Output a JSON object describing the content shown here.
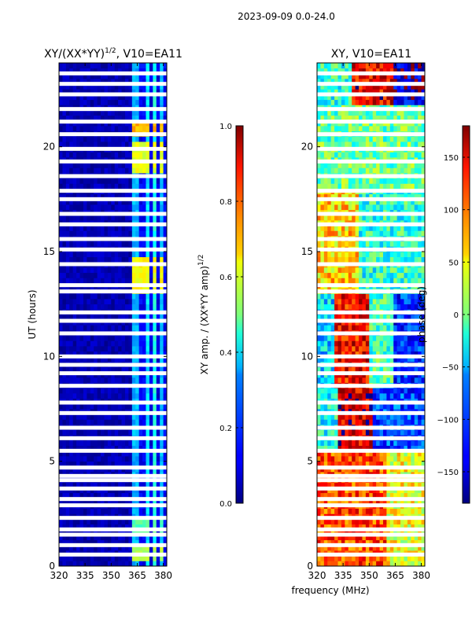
{
  "chart_data": {
    "type": "heatmap",
    "suptitle": "2023-09-09 0.0-24.0",
    "shared_xlabel": "frequency (MHz)",
    "panels": [
      {
        "id": "amp",
        "title": "XY/(XX*YY)",
        "title_sup": "1/2",
        "title_suffix": ", V10=EA11",
        "xlim": [
          320,
          382
        ],
        "ylim": [
          0,
          24
        ],
        "xticks": [
          320,
          335,
          350,
          365,
          380
        ],
        "yticks": [
          0,
          5,
          10,
          15,
          20
        ],
        "ylabel": "UT (hours)",
        "colormap": "jet",
        "colorbar": {
          "label": "XY amp. / (XX*YY amp)",
          "label_sup": "1/2",
          "range": [
            0.0,
            1.0
          ],
          "ticks": [
            "0.0",
            "0.2",
            "0.4",
            "0.6",
            "0.8",
            "1.0"
          ],
          "tick_values": [
            0.0,
            0.2,
            0.4,
            0.6,
            0.8,
            1.0
          ]
        }
      },
      {
        "id": "phase",
        "title": "XY, V10=EA11",
        "xlim": [
          320,
          382
        ],
        "ylim": [
          0,
          24
        ],
        "xticks": [
          320,
          335,
          350,
          365,
          380
        ],
        "yticks": [
          0,
          5,
          10,
          15,
          20
        ],
        "colormap": "jet",
        "colorbar": {
          "label": "phase (deg)",
          "range": [
            -180,
            180
          ],
          "ticks": [
            "−150",
            "−100",
            "−50",
            "0",
            "50",
            "100",
            "150"
          ],
          "tick_values": [
            -150,
            -100,
            -50,
            0,
            50,
            100,
            150
          ]
        }
      }
    ],
    "flagged_ut_hours": [
      0.55,
      1.0,
      1.5,
      1.75,
      2.3,
      2.9,
      3.2,
      3.7,
      4.1,
      4.3,
      4.7,
      5.5,
      6.1,
      6.6,
      7.3,
      7.8,
      8.6,
      9.2,
      9.6,
      10.0,
      11.1,
      11.7,
      12.1,
      13.1,
      13.4,
      14.4,
      15.1,
      15.6,
      16.3,
      16.8,
      17.5,
      17.9,
      18.6,
      19.3,
      19.9,
      20.6,
      21.2,
      21.8,
      22.5,
      23.0,
      23.5
    ],
    "amp_features": [
      {
        "f_start": 320,
        "f_end": 362,
        "value": 0.05
      },
      {
        "f_start": 362,
        "f_end": 366,
        "value": 0.3
      },
      {
        "f_start": 366,
        "f_end": 370,
        "value": 0.12
      },
      {
        "f_start": 370,
        "f_end": 372,
        "value": 0.35
      },
      {
        "f_start": 372,
        "f_end": 375,
        "value": 0.1
      },
      {
        "f_start": 375,
        "f_end": 377,
        "value": 0.4
      },
      {
        "f_start": 377,
        "f_end": 379,
        "value": 0.1
      },
      {
        "f_start": 379,
        "f_end": 381,
        "value": 0.3
      },
      {
        "f_start": 381,
        "f_end": 382,
        "value": 0.12
      }
    ],
    "amp_hotspots": [
      {
        "ut_start": 20.5,
        "ut_end": 21.3,
        "f_start": 362,
        "f_end": 381,
        "value": 0.7
      },
      {
        "ut_start": 18.8,
        "ut_end": 20.2,
        "f_start": 362,
        "f_end": 381,
        "value": 0.6
      },
      {
        "ut_start": 13.0,
        "ut_end": 14.8,
        "f_start": 362,
        "f_end": 381,
        "value": 0.62
      },
      {
        "ut_start": 0.3,
        "ut_end": 0.9,
        "f_start": 362,
        "f_end": 381,
        "value": 0.55
      },
      {
        "ut_start": 1.6,
        "ut_end": 2.2,
        "f_start": 362,
        "f_end": 381,
        "value": 0.45
      }
    ],
    "phase_features": [
      {
        "ut_start": 0,
        "ut_end": 5.5,
        "f_start": 320,
        "f_end": 360,
        "value": 110
      },
      {
        "ut_start": 0,
        "ut_end": 5.5,
        "f_start": 360,
        "f_end": 382,
        "value": 40
      },
      {
        "ut_start": 5.5,
        "ut_end": 8.5,
        "f_start": 320,
        "f_end": 332,
        "value": -40
      },
      {
        "ut_start": 5.5,
        "ut_end": 8.5,
        "f_start": 332,
        "f_end": 352,
        "value": 150
      },
      {
        "ut_start": 5.5,
        "ut_end": 8.5,
        "f_start": 352,
        "f_end": 382,
        "value": -110
      },
      {
        "ut_start": 8.5,
        "ut_end": 13.0,
        "f_start": 320,
        "f_end": 330,
        "value": -60
      },
      {
        "ut_start": 8.5,
        "ut_end": 13.0,
        "f_start": 330,
        "f_end": 350,
        "value": 135
      },
      {
        "ut_start": 8.5,
        "ut_end": 13.0,
        "f_start": 350,
        "f_end": 365,
        "value": -20
      },
      {
        "ut_start": 8.5,
        "ut_end": 13.0,
        "f_start": 365,
        "f_end": 382,
        "value": -120
      },
      {
        "ut_start": 13.0,
        "ut_end": 18.0,
        "f_start": 320,
        "f_end": 345,
        "value": 60
      },
      {
        "ut_start": 13.0,
        "ut_end": 18.0,
        "f_start": 345,
        "f_end": 382,
        "value": -30
      },
      {
        "ut_start": 18.0,
        "ut_end": 22.0,
        "f_start": 320,
        "f_end": 382,
        "value": -10
      },
      {
        "ut_start": 22.0,
        "ut_end": 24.0,
        "f_start": 320,
        "f_end": 340,
        "value": -30
      },
      {
        "ut_start": 22.0,
        "ut_end": 24.0,
        "f_start": 340,
        "f_end": 365,
        "value": 140
      },
      {
        "ut_start": 22.0,
        "ut_end": 24.0,
        "f_start": 365,
        "f_end": 382,
        "value": -150
      }
    ]
  }
}
